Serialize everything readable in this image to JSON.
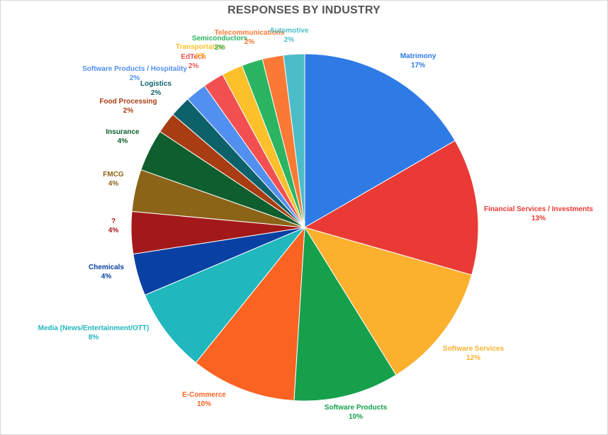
{
  "chart_data": {
    "type": "pie",
    "title": "RESPONSES BY INDUSTRY",
    "slices": [
      {
        "label": "Matrimony",
        "pct_label": "17%",
        "value": 17,
        "color": "#2e7be6"
      },
      {
        "label": "Financial Services / Investments",
        "pct_label": "13%",
        "value": 13,
        "color": "#ea3a35"
      },
      {
        "label": "Software Services",
        "pct_label": "12%",
        "value": 12,
        "color": "#fbb12e"
      },
      {
        "label": "Software Products",
        "pct_label": "10%",
        "value": 10,
        "color": "#16a04c"
      },
      {
        "label": "E-Commerce",
        "pct_label": "10%",
        "value": 10,
        "color": "#fb6322"
      },
      {
        "label": "Media (News/Entertainment/OTT)",
        "pct_label": "8%",
        "value": 8,
        "color": "#20b7bd"
      },
      {
        "label": "Chemicals",
        "pct_label": "4%",
        "value": 4,
        "color": "#0841a3"
      },
      {
        "label": "?",
        "pct_label": "4%",
        "value": 4,
        "color": "#a31919"
      },
      {
        "label": "FMCG",
        "pct_label": "4%",
        "value": 4,
        "color": "#8c6418"
      },
      {
        "label": "Insurance",
        "pct_label": "4%",
        "value": 4,
        "color": "#0e5e2e"
      },
      {
        "label": "Food Processing",
        "pct_label": "2%",
        "value": 2,
        "color": "#a83c12"
      },
      {
        "label": "Logistics",
        "pct_label": "2%",
        "value": 2,
        "color": "#0d6169"
      },
      {
        "label": "Software Products / Hospitality",
        "pct_label": "2%",
        "value": 2,
        "color": "#5290f0"
      },
      {
        "label": "EdTech",
        "pct_label": "2%",
        "value": 2,
        "color": "#f25050"
      },
      {
        "label": "Transportation",
        "pct_label": "2%",
        "value": 2,
        "color": "#fcc02b"
      },
      {
        "label": "Semiconductors",
        "pct_label": "2%",
        "value": 2,
        "color": "#2bb562"
      },
      {
        "label": "Telecommunications",
        "pct_label": "2%",
        "value": 2,
        "color": "#fa7a35"
      },
      {
        "label": "Automotive",
        "pct_label": "2%",
        "value": 2,
        "color": "#4cbdc8"
      }
    ],
    "legend": "none"
  }
}
